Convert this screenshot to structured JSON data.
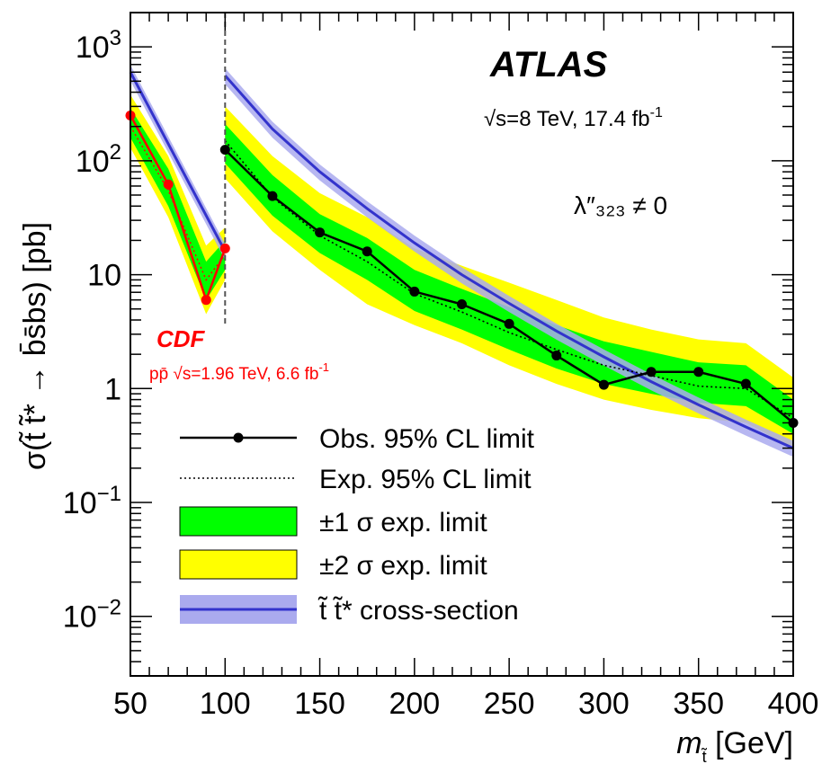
{
  "chart_data": {
    "type": "line",
    "experiment": "ATLAS",
    "energy_label": "√s=8 TeV, 17.4 fb",
    "energy_label_sup": "-1",
    "coupling_label": "λ″₃₂₃ ≠ 0",
    "ylabel": "σ(t̃ t̃* → b̄s̄bs) [pb]",
    "xlabel": "m",
    "xlabel_sub": "t̃",
    "xlabel_unit": " [GeV]",
    "xlim": [
      50,
      400
    ],
    "ylim": [
      0.003,
      2000
    ],
    "yscale": "log",
    "x_ticks": [
      "50",
      "100",
      "150",
      "200",
      "250",
      "300",
      "350",
      "400"
    ],
    "y_ticks": [
      {
        "value": 1000,
        "base": "10",
        "exp": "3"
      },
      {
        "value": 100,
        "base": "10",
        "exp": "2"
      },
      {
        "value": 10,
        "base": "10",
        "exp": ""
      },
      {
        "value": 1,
        "base": "1",
        "exp": ""
      },
      {
        "value": 0.1,
        "base": "10",
        "exp": "−1"
      },
      {
        "value": 0.01,
        "base": "10",
        "exp": "−2"
      }
    ],
    "atlas_observed": {
      "x": [
        100,
        125,
        150,
        175,
        200,
        225,
        250,
        275,
        300,
        325,
        350,
        375,
        400
      ],
      "y": [
        125,
        49,
        23.5,
        16,
        7.1,
        5.5,
        3.7,
        1.95,
        1.08,
        1.4,
        1.4,
        1.1,
        0.5
      ]
    },
    "atlas_expected": {
      "x": [
        100,
        125,
        150,
        175,
        200,
        225,
        250,
        275,
        300,
        325,
        350,
        375,
        400
      ],
      "y": [
        150,
        48,
        22,
        13,
        6.8,
        4.7,
        3.1,
        2.2,
        1.6,
        1.3,
        1.05,
        1.0,
        0.55
      ]
    },
    "atlas_band_1sigma": {
      "x": [
        100,
        125,
        150,
        175,
        200,
        225,
        250,
        275,
        300,
        325,
        350,
        375,
        400
      ],
      "low": [
        95,
        33,
        15.5,
        9,
        4.8,
        3.3,
        2.2,
        1.5,
        1.1,
        0.9,
        0.75,
        0.7,
        0.4
      ],
      "high": [
        210,
        75,
        34,
        21,
        11,
        7.5,
        5.2,
        3.6,
        2.6,
        2.1,
        1.7,
        1.6,
        0.8
      ]
    },
    "atlas_band_2sigma": {
      "x": [
        100,
        125,
        150,
        175,
        200,
        225,
        250,
        275,
        300,
        325,
        350,
        375,
        400
      ],
      "low": [
        70,
        24,
        11,
        5.5,
        3.6,
        2.5,
        1.6,
        1.1,
        0.8,
        0.65,
        0.55,
        0.5,
        0.3
      ],
      "high": [
        300,
        110,
        52,
        32,
        17,
        12,
        8.5,
        6,
        4.2,
        3.3,
        2.7,
        2.5,
        1.25
      ]
    },
    "theory_xsec": {
      "x": [
        50,
        100,
        100,
        125,
        150,
        175,
        200,
        225,
        250,
        275,
        300,
        325,
        350,
        375,
        400
      ],
      "y": [
        600,
        16,
        560,
        190,
        80,
        38,
        19,
        10,
        5.6,
        3.2,
        1.9,
        1.15,
        0.72,
        0.46,
        0.3
      ]
    },
    "theory_band_frac": 0.16,
    "cdf_observed": {
      "x": [
        50,
        70,
        90,
        100
      ],
      "y": [
        250,
        62,
        6,
        17
      ]
    },
    "cdf_expected": {
      "x": [
        50,
        70,
        90,
        100
      ],
      "y": [
        200,
        55,
        9,
        15
      ]
    },
    "cdf_band_1sigma": {
      "x": [
        50,
        70,
        90,
        100
      ],
      "low": [
        160,
        40,
        6,
        11
      ],
      "high": [
        290,
        85,
        13,
        20
      ]
    },
    "cdf_band_2sigma": {
      "x": [
        50,
        70,
        90,
        100
      ],
      "low": [
        130,
        32,
        4.5,
        9
      ],
      "high": [
        380,
        110,
        18,
        26
      ]
    },
    "cdf_label": "CDF",
    "cdf_sublabel": "pp̄  √s=1.96 TeV, 6.6 fb",
    "cdf_sublabel_sup": "-1",
    "legend": [
      {
        "label": "Obs. 95% CL limit",
        "style": "obs"
      },
      {
        "label": "Exp. 95% CL limit",
        "style": "exp"
      },
      {
        "label": "±1 σ exp. limit",
        "style": "band1"
      },
      {
        "label": "±2 σ exp. limit",
        "style": "band2"
      },
      {
        "label": "t̃ t̃* cross-section",
        "style": "theory"
      }
    ],
    "legend_position": "bottom-left",
    "colors": {
      "observed": "#000000",
      "band_1sigma": "#00ff00",
      "band_2sigma": "#ffff00",
      "theory_line": "#3333cc",
      "theory_band": "#aaaaee",
      "cdf": "#ff0000",
      "separator": "#555555"
    }
  }
}
